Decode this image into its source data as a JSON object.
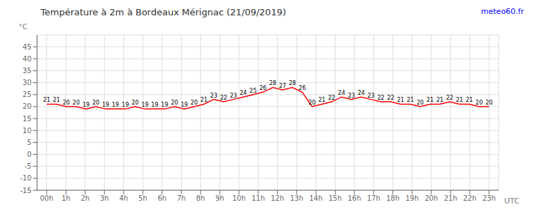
{
  "chart_data": {
    "type": "line",
    "title": "Température à 2m à Bordeaux Mérignac (21/09/2019)",
    "x_label": "UTC",
    "y_label": "°C",
    "annotations": [
      "meteo60.fr"
    ],
    "x": [
      0,
      0.511111,
      1.022222,
      1.533333,
      2.044444,
      2.555556,
      3.066667,
      3.577778,
      4.088889,
      4.6,
      5.111111,
      5.622222,
      6.133333,
      6.644444,
      7.155556,
      7.666667,
      8.177778,
      8.688889,
      9.2,
      9.711111,
      10.222222,
      10.733333,
      11.244444,
      11.755556,
      12.266667,
      12.777778,
      13.288889,
      13.8,
      14.311111,
      14.822222,
      15.333333,
      15.844444,
      16.355556,
      16.866667,
      17.377778,
      17.888889,
      18.4,
      18.911111,
      19.422222,
      19.933333,
      20.444444,
      20.955556,
      21.466667,
      21.977778,
      22.488889,
      23
    ],
    "values": [
      21,
      21,
      20,
      20,
      19,
      20,
      19,
      19,
      19,
      20,
      19,
      19,
      19,
      20,
      19,
      20,
      21,
      23,
      22,
      23,
      24,
      25,
      26,
      28,
      27,
      28,
      26,
      20,
      21,
      22,
      24,
      23,
      24,
      23,
      22,
      22,
      21,
      21,
      20,
      21,
      21,
      22,
      21,
      21,
      20,
      20
    ],
    "color": "#ff0000",
    "xlim": [
      -0.5,
      23.5
    ],
    "xticks": [
      {
        "value": 0,
        "label": "00h"
      },
      {
        "value": 1,
        "label": "1h"
      },
      {
        "value": 2,
        "label": "2h"
      },
      {
        "value": 3,
        "label": "3h"
      },
      {
        "value": 4,
        "label": "4h"
      },
      {
        "value": 5,
        "label": "5h"
      },
      {
        "value": 6,
        "label": "6h"
      },
      {
        "value": 7,
        "label": "7h"
      },
      {
        "value": 8,
        "label": "8h"
      },
      {
        "value": 9,
        "label": "9h"
      },
      {
        "value": 10,
        "label": "10h"
      },
      {
        "value": 11,
        "label": "11h"
      },
      {
        "value": 12,
        "label": "12h"
      },
      {
        "value": 13,
        "label": "13h"
      },
      {
        "value": 14,
        "label": "14h"
      },
      {
        "value": 15,
        "label": "15h"
      },
      {
        "value": 16,
        "label": "16h"
      },
      {
        "value": 17,
        "label": "17h"
      },
      {
        "value": 18,
        "label": "18h"
      },
      {
        "value": 19,
        "label": "19h"
      },
      {
        "value": 20,
        "label": "20h"
      },
      {
        "value": 21,
        "label": "21h"
      },
      {
        "value": 22,
        "label": "22h"
      },
      {
        "value": 23,
        "label": "23h"
      }
    ],
    "ylim": [
      -15,
      50
    ],
    "yticks": [
      -15,
      -10,
      -5,
      0,
      5,
      10,
      15,
      20,
      25,
      30,
      35,
      40,
      45
    ],
    "grid": true,
    "data_labels": true
  }
}
